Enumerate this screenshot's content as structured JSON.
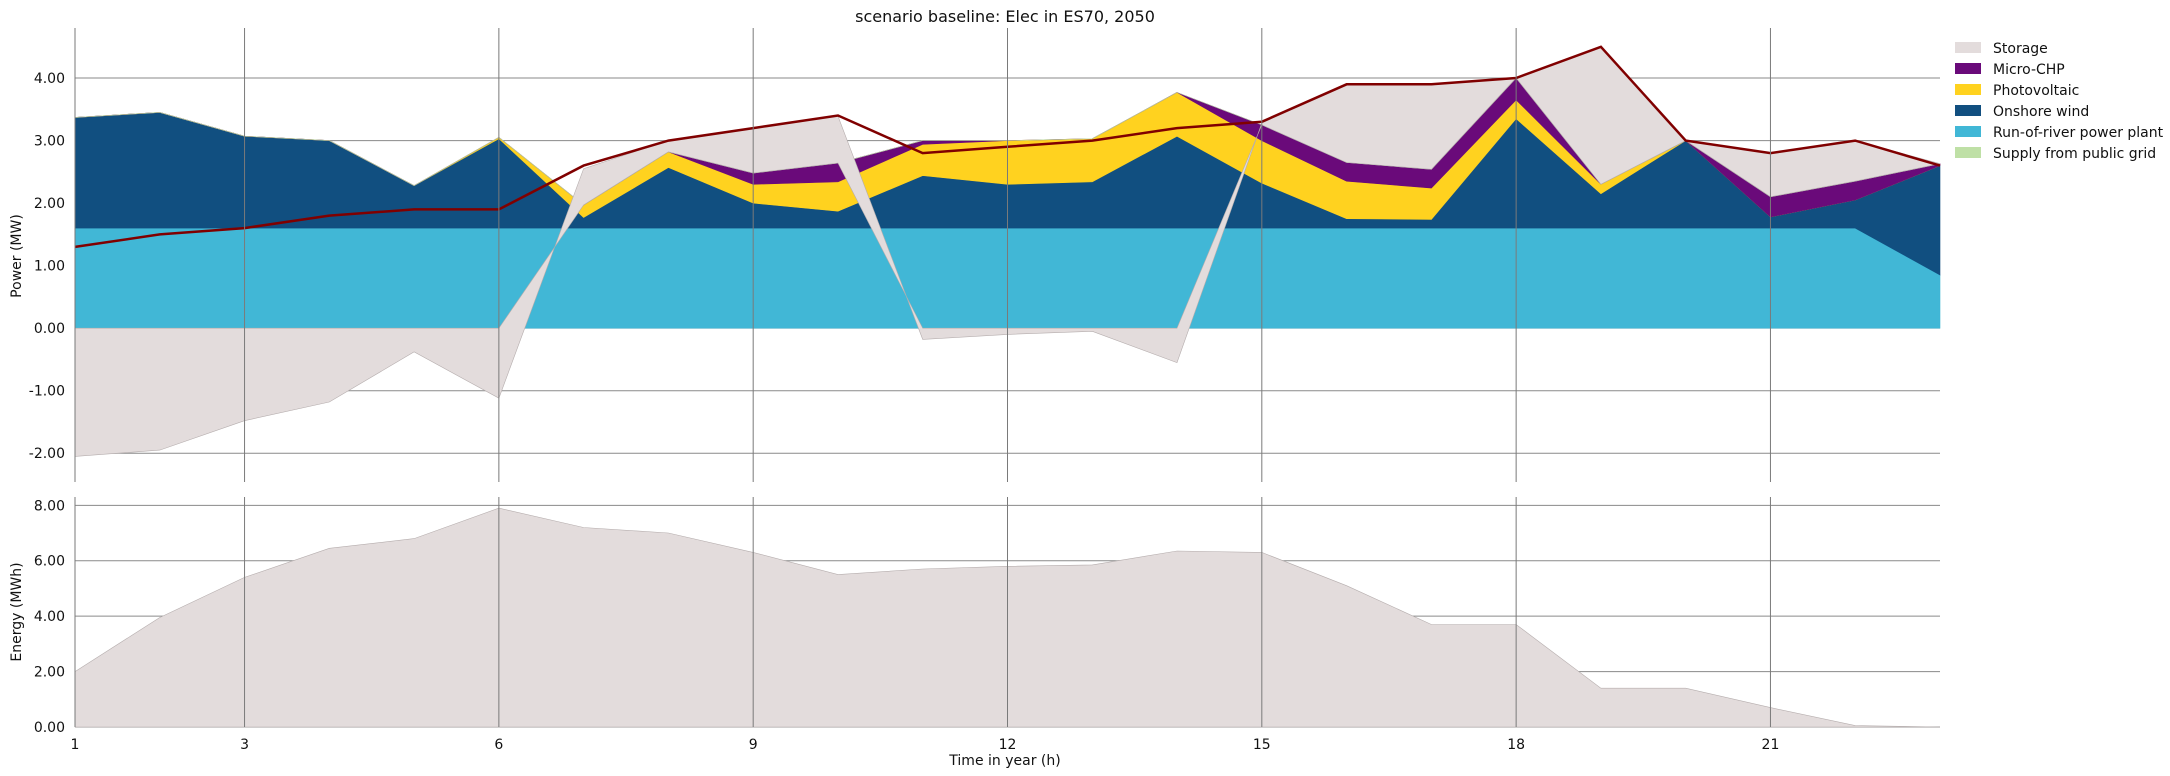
{
  "chart_data": {
    "type": "area",
    "title": "scenario baseline: Elec in ES70, 2050",
    "xlabel": "Time in year (h)",
    "x": [
      1,
      2,
      3,
      4,
      5,
      6,
      7,
      8,
      9,
      10,
      11,
      12,
      13,
      14,
      15,
      16,
      17,
      18,
      19,
      20,
      21,
      22,
      23
    ],
    "x_ticks": [
      1,
      3,
      6,
      9,
      12,
      15,
      18,
      21
    ],
    "legend_position": "top-right (outside plot)",
    "grid": true,
    "colors": {
      "Storage": "#e3dcdc",
      "Micro-CHP": "#6a0a7a",
      "Photovoltaic": "#ffd21f",
      "Onshore wind": "#114f80",
      "Run-of-river power plant": "#41b7d6",
      "Supply from public grid": "#bfe0a6",
      "demand_line": "#800000"
    },
    "legend": [
      "Storage",
      "Micro-CHP",
      "Photovoltaic",
      "Onshore wind",
      "Run-of-river power plant",
      "Supply from public grid"
    ],
    "power_panel": {
      "ylabel": "Power (MW)",
      "ylim": [
        -2.3,
        4.8
      ],
      "y_ticks": [
        -2.0,
        -1.0,
        0.0,
        1.0,
        2.0,
        3.0,
        4.0
      ],
      "y_tick_labels": [
        "-2.00",
        "-1.00",
        "0.00",
        "1.00",
        "2.00",
        "3.00",
        "4.00"
      ],
      "series": [
        {
          "name": "Run-of-river power plant",
          "values": [
            1.6,
            1.6,
            1.6,
            1.6,
            1.6,
            1.6,
            1.6,
            1.6,
            1.6,
            1.6,
            1.6,
            1.6,
            1.6,
            1.6,
            1.6,
            1.6,
            1.6,
            1.6,
            1.6,
            1.6,
            1.6,
            1.6,
            0.85
          ]
        },
        {
          "name": "Onshore wind",
          "values": [
            1.77,
            1.85,
            1.47,
            1.4,
            0.68,
            1.43,
            0.17,
            0.97,
            0.4,
            0.27,
            0.84,
            0.7,
            0.74,
            1.47,
            0.72,
            0.15,
            0.14,
            1.75,
            0.55,
            1.4,
            0.18,
            0.45,
            1.75
          ]
        },
        {
          "name": "Photovoltaic",
          "values": [
            0,
            0,
            0,
            0,
            0,
            0.02,
            0.2,
            0.25,
            0.3,
            0.47,
            0.5,
            0.7,
            0.69,
            0.7,
            0.68,
            0.6,
            0.5,
            0.3,
            0.15,
            0,
            0,
            0,
            0
          ]
        },
        {
          "name": "Micro-CHP",
          "values": [
            0,
            0,
            0,
            0,
            0,
            0,
            0,
            0,
            0.18,
            0.3,
            0.06,
            0,
            0,
            0,
            0.25,
            0.3,
            0.3,
            0.35,
            0,
            0,
            0.32,
            0.3,
            0.03
          ]
        },
        {
          "name": "Supply from public grid",
          "values": [
            0,
            0,
            0,
            0,
            0,
            0,
            0,
            0,
            0,
            0,
            0,
            0,
            0,
            0,
            0,
            0,
            0,
            0,
            0,
            0,
            0,
            0,
            0
          ]
        },
        {
          "name": "Storage",
          "values": [
            -2.05,
            -1.95,
            -1.48,
            -1.18,
            -0.38,
            -1.12,
            0.58,
            0.18,
            0.72,
            0.75,
            -0.18,
            -0.1,
            -0.05,
            -0.55,
            0.03,
            1.25,
            1.35,
            0,
            2.2,
            0,
            0.7,
            0.65,
            0
          ]
        }
      ],
      "demand": [
        1.3,
        1.5,
        1.6,
        1.8,
        1.9,
        1.9,
        2.6,
        3.0,
        3.2,
        3.4,
        2.8,
        2.9,
        3.0,
        3.2,
        3.3,
        3.9,
        3.9,
        4.0,
        4.5,
        3.0,
        2.8,
        3.0,
        2.6
      ]
    },
    "energy_panel": {
      "ylabel": "Energy (MWh)",
      "ylim": [
        0,
        8.3
      ],
      "y_ticks": [
        0,
        2,
        4,
        6,
        8
      ],
      "y_tick_labels": [
        "0.00",
        "2.00",
        "4.00",
        "6.00",
        "8.00"
      ],
      "series": [
        {
          "name": "Storage",
          "values": [
            2.0,
            3.95,
            5.4,
            6.45,
            6.8,
            7.9,
            7.2,
            7.0,
            6.3,
            5.5,
            5.7,
            5.8,
            5.85,
            6.35,
            6.3,
            5.1,
            3.7,
            3.7,
            1.4,
            1.4,
            0.7,
            0.05,
            0
          ]
        }
      ]
    }
  }
}
